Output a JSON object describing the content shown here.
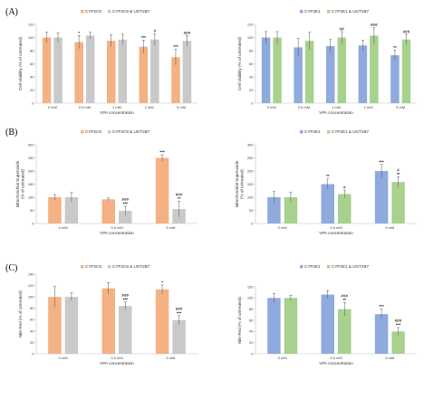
{
  "colors": {
    "cyp2c9": "#f4b183",
    "cyp2e1": "#8faadc",
    "ugt_gray": "#c9c9c9",
    "ugt_green": "#a9d18e",
    "axis": "#bfbfbf",
    "errbar": "#555555"
  },
  "chart_data": [
    {
      "id": "A-left",
      "type": "bar",
      "panel_letter": "(A)",
      "ylabel": "Cell Viability (% of untreated)",
      "xlabel": "VPA concentration",
      "ylim": [
        0,
        120
      ],
      "yticks": [
        0,
        20,
        40,
        60,
        80,
        100,
        120
      ],
      "categories": [
        "0 mM",
        "0.5 mM",
        "1 mM",
        "2 mM",
        "5 mM"
      ],
      "series": [
        {
          "name": "CYP2C9",
          "color_key": "cyp2c9",
          "values": [
            100,
            93,
            95,
            86,
            70
          ],
          "errors": [
            8,
            10,
            9,
            10,
            12
          ],
          "sig": [
            "",
            "*",
            "",
            "***",
            "***"
          ]
        },
        {
          "name": "CYP2C9 & UGT2B7",
          "color_key": "ugt_gray",
          "values": [
            100,
            103,
            97,
            97,
            95
          ],
          "errors": [
            7,
            5,
            8,
            9,
            8
          ],
          "sig": [
            "",
            "",
            "",
            "#",
            "###"
          ]
        }
      ]
    },
    {
      "id": "A-right",
      "type": "bar",
      "panel_letter": "",
      "ylabel": "Cell Viability (% of untreated)",
      "xlabel": "VPA concentration",
      "ylim": [
        0,
        120
      ],
      "yticks": [
        0,
        20,
        40,
        60,
        80,
        100,
        120
      ],
      "categories": [
        "0 mM",
        "0.5 mM",
        "1 mM",
        "2 mM",
        "5 mM"
      ],
      "series": [
        {
          "name": "CYP2E1",
          "color_key": "cyp2e1",
          "values": [
            100,
            85,
            87,
            88,
            73
          ],
          "errors": [
            9,
            14,
            10,
            8,
            8
          ],
          "sig": [
            "",
            "",
            "",
            "",
            "**"
          ]
        },
        {
          "name": "CYP2E1 & UGT2B7",
          "color_key": "ugt_green",
          "values": [
            100,
            95,
            100,
            103,
            97
          ],
          "errors": [
            9,
            13,
            9,
            12,
            8
          ],
          "sig": [
            "",
            "",
            "##",
            "###",
            "###"
          ]
        }
      ]
    },
    {
      "id": "B-left",
      "type": "bar",
      "panel_letter": "(B)",
      "ylabel": "Mitochondrial Superoxide (% of untreated)",
      "xlabel": "VPA concentration",
      "ylim": [
        0,
        300
      ],
      "yticks": [
        0,
        50,
        100,
        150,
        200,
        250,
        300
      ],
      "categories": [
        "0 mM",
        "0.5 mM",
        "5 mM"
      ],
      "series": [
        {
          "name": "CYP2C9",
          "color_key": "cyp2c9",
          "values": [
            100,
            92,
            250
          ],
          "errors": [
            10,
            5,
            12
          ],
          "sig": [
            "",
            "",
            "***"
          ]
        },
        {
          "name": "CYP2C9 & UGT2B7",
          "color_key": "ugt_gray",
          "values": [
            100,
            48,
            55
          ],
          "errors": [
            18,
            18,
            30
          ],
          "sig": [
            "",
            "###\n***",
            "###\n**"
          ]
        }
      ]
    },
    {
      "id": "B-right",
      "type": "bar",
      "panel_letter": "",
      "ylabel": "Mitochondrial Superoxide (% of untreated)",
      "xlabel": "VPA concentration",
      "ylim": [
        0,
        300
      ],
      "yticks": [
        0,
        50,
        100,
        150,
        200,
        250,
        300
      ],
      "categories": [
        "0 mM",
        "0.5 mM",
        "5 mM"
      ],
      "series": [
        {
          "name": "CYP2E1",
          "color_key": "cyp2e1",
          "values": [
            100,
            150,
            200
          ],
          "errors": [
            22,
            20,
            25
          ],
          "sig": [
            "",
            "**",
            "***"
          ]
        },
        {
          "name": "CYP2E1 & UGT2B7",
          "color_key": "ugt_green",
          "values": [
            100,
            112,
            158
          ],
          "errors": [
            20,
            15,
            20
          ],
          "sig": [
            "",
            "#",
            "#\n**"
          ]
        }
      ]
    },
    {
      "id": "C-left",
      "type": "bar",
      "panel_letter": "(C)",
      "ylabel": "Nile Red (% of untreated)",
      "xlabel": "VPA concentration",
      "ylim": [
        0,
        140
      ],
      "yticks": [
        0,
        20,
        40,
        60,
        80,
        100,
        120,
        140
      ],
      "categories": [
        "0 mM",
        "0.5 mM",
        "5 mM"
      ],
      "series": [
        {
          "name": "CYP2C9",
          "color_key": "cyp2c9",
          "values": [
            100,
            115,
            113
          ],
          "errors": [
            18,
            10,
            8
          ],
          "sig": [
            "",
            "",
            "*"
          ]
        },
        {
          "name": "CYP2C9 & UGT2B7",
          "color_key": "ugt_gray",
          "values": [
            100,
            84,
            59
          ],
          "errors": [
            7,
            7,
            8
          ],
          "sig": [
            "",
            "###\n***",
            "###\n***"
          ]
        }
      ]
    },
    {
      "id": "C-right",
      "type": "bar",
      "panel_letter": "",
      "ylabel": "Nile Red (% of untreated)",
      "xlabel": "VPA concentration",
      "ylim": [
        0,
        120
      ],
      "yticks": [
        0,
        20,
        40,
        60,
        80,
        100,
        120
      ],
      "categories": [
        "0 mM",
        "0.5 mM",
        "5 mM"
      ],
      "series": [
        {
          "name": "CYP2E1",
          "color_key": "cyp2e1",
          "values": [
            100,
            106,
            71
          ],
          "errors": [
            8,
            7,
            9
          ],
          "sig": [
            "",
            "",
            "***"
          ]
        },
        {
          "name": "CYP2E1 & UGT2B7",
          "color_key": "ugt_green",
          "values": [
            100,
            80,
            40
          ],
          "errors": [
            5,
            12,
            7
          ],
          "sig": [
            "",
            "###\n**",
            "###\n***"
          ]
        }
      ]
    }
  ]
}
